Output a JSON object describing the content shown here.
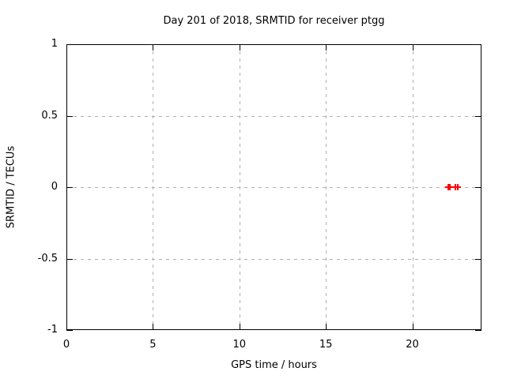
{
  "chart_data": {
    "type": "scatter",
    "title": "Day 201 of 2018, SRMTID for receiver ptgg",
    "xlabel": "GPS time / hours",
    "ylabel": "SRMTID / TECUs",
    "xlim": [
      0,
      24
    ],
    "ylim": [
      -1,
      1
    ],
    "grid": true,
    "legend_position": "none",
    "xticks": {
      "values": [
        0,
        5,
        10,
        15,
        20
      ],
      "labels": [
        "0",
        "5",
        "10",
        "15",
        "20"
      ]
    },
    "yticks": {
      "values": [
        -1,
        -0.5,
        0,
        0.5,
        1
      ],
      "labels": [
        "-1",
        "-0.5",
        "0",
        "0.5",
        "1"
      ]
    },
    "series": [
      {
        "name": "SRMTID",
        "marker": "plus",
        "color": "#ff0000",
        "x": [
          22.08,
          22.17,
          22.47,
          22.65
        ],
        "y": [
          0,
          0,
          0,
          0
        ]
      }
    ]
  },
  "colors": {
    "background": "#ffffff",
    "border": "#000000",
    "grid": "#b0b0b0",
    "text": "#000000",
    "marker": "#ff0000"
  }
}
